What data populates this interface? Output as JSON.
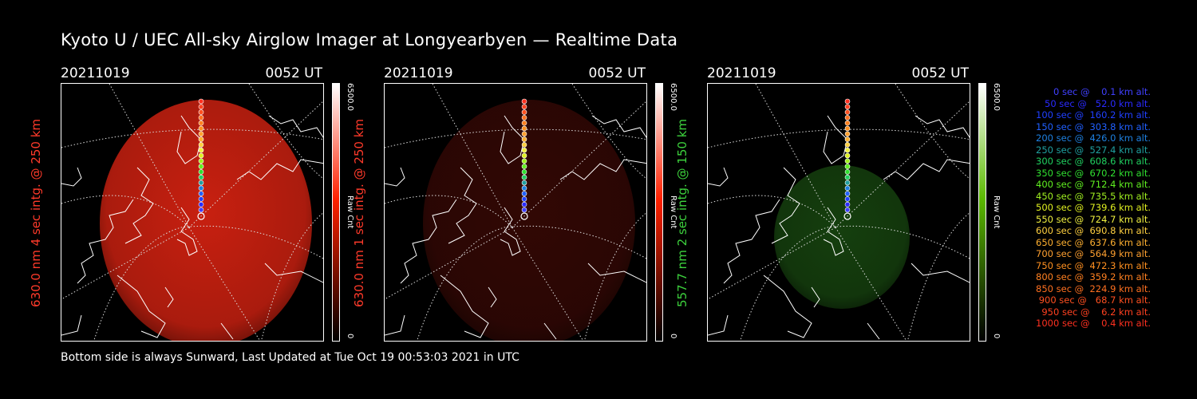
{
  "title": "Kyoto U / UEC All-sky Airglow Imager at Longyearbyen — Realtime Data",
  "footer": "Bottom side is always Sunward, Last Updated at Tue Oct 19 00:53:03 2021 in UTC",
  "panels": [
    {
      "date": "20211019",
      "time": "0052 UT",
      "ylabel": "630.0 nm 4 sec intg. @ 250 km",
      "ylabel_color": "#ff3a2a",
      "cbar_max": "6500.0",
      "cbar_min": "0",
      "cbar_unit": "Raw Cnt",
      "tint": "#c82010",
      "cbar_color": "#ff2000",
      "intensity": 1.0
    },
    {
      "date": "20211019",
      "time": "0052 UT",
      "ylabel": "630.0 nm 1 sec intg. @ 250 km",
      "ylabel_color": "#ff3a2a",
      "cbar_max": "6500.0",
      "cbar_min": "0",
      "cbar_unit": "Raw Cnt",
      "tint": "#5a0e08",
      "cbar_color": "#ff2000",
      "intensity": 0.55
    },
    {
      "date": "20211019",
      "time": "0052 UT",
      "ylabel": "557.7 nm 2 sec intg. @ 150 km",
      "ylabel_color": "#3dd23d",
      "cbar_max": "6500.0",
      "cbar_min": "0",
      "cbar_unit": "Raw Cnt",
      "tint": "#1e5a14",
      "cbar_color": "#5ab800",
      "intensity": 0.7
    }
  ],
  "legend": [
    {
      "text": "0 sec @    0.1 km alt.",
      "color": "#4040ff"
    },
    {
      "text": "50 sec @   52.0 km alt.",
      "color": "#2a2aff"
    },
    {
      "text": "100 sec @  160.2 km alt.",
      "color": "#2040ff"
    },
    {
      "text": "150 sec @  303.8 km alt.",
      "color": "#2060ff"
    },
    {
      "text": "200 sec @  426.0 km alt.",
      "color": "#1e80e0"
    },
    {
      "text": "250 sec @  527.4 km alt.",
      "color": "#20a0a0"
    },
    {
      "text": "300 sec @  608.6 km alt.",
      "color": "#20d060"
    },
    {
      "text": "350 sec @  670.2 km alt.",
      "color": "#30e030"
    },
    {
      "text": "400 sec @  712.4 km alt.",
      "color": "#60f020"
    },
    {
      "text": "450 sec @  735.5 km alt.",
      "color": "#a0f020"
    },
    {
      "text": "500 sec @  739.6 km alt.",
      "color": "#e0f020"
    },
    {
      "text": "550 sec @  724.7 km alt.",
      "color": "#f0f040"
    },
    {
      "text": "600 sec @  690.8 km alt.",
      "color": "#ffd040"
    },
    {
      "text": "650 sec @  637.6 km alt.",
      "color": "#ffb030"
    },
    {
      "text": "700 sec @  564.9 km alt.",
      "color": "#ffa030"
    },
    {
      "text": "750 sec @  472.3 km alt.",
      "color": "#ff9020"
    },
    {
      "text": "800 sec @  359.2 km alt.",
      "color": "#ff8020"
    },
    {
      "text": "850 sec @  224.9 km alt.",
      "color": "#ff7020"
    },
    {
      "text": "900 sec @   68.7 km alt.",
      "color": "#ff5020"
    },
    {
      "text": "950 sec @    6.2 km alt.",
      "color": "#ff4020"
    },
    {
      "text": "1000 sec @    0.4 km alt.",
      "color": "#ff3020"
    }
  ]
}
